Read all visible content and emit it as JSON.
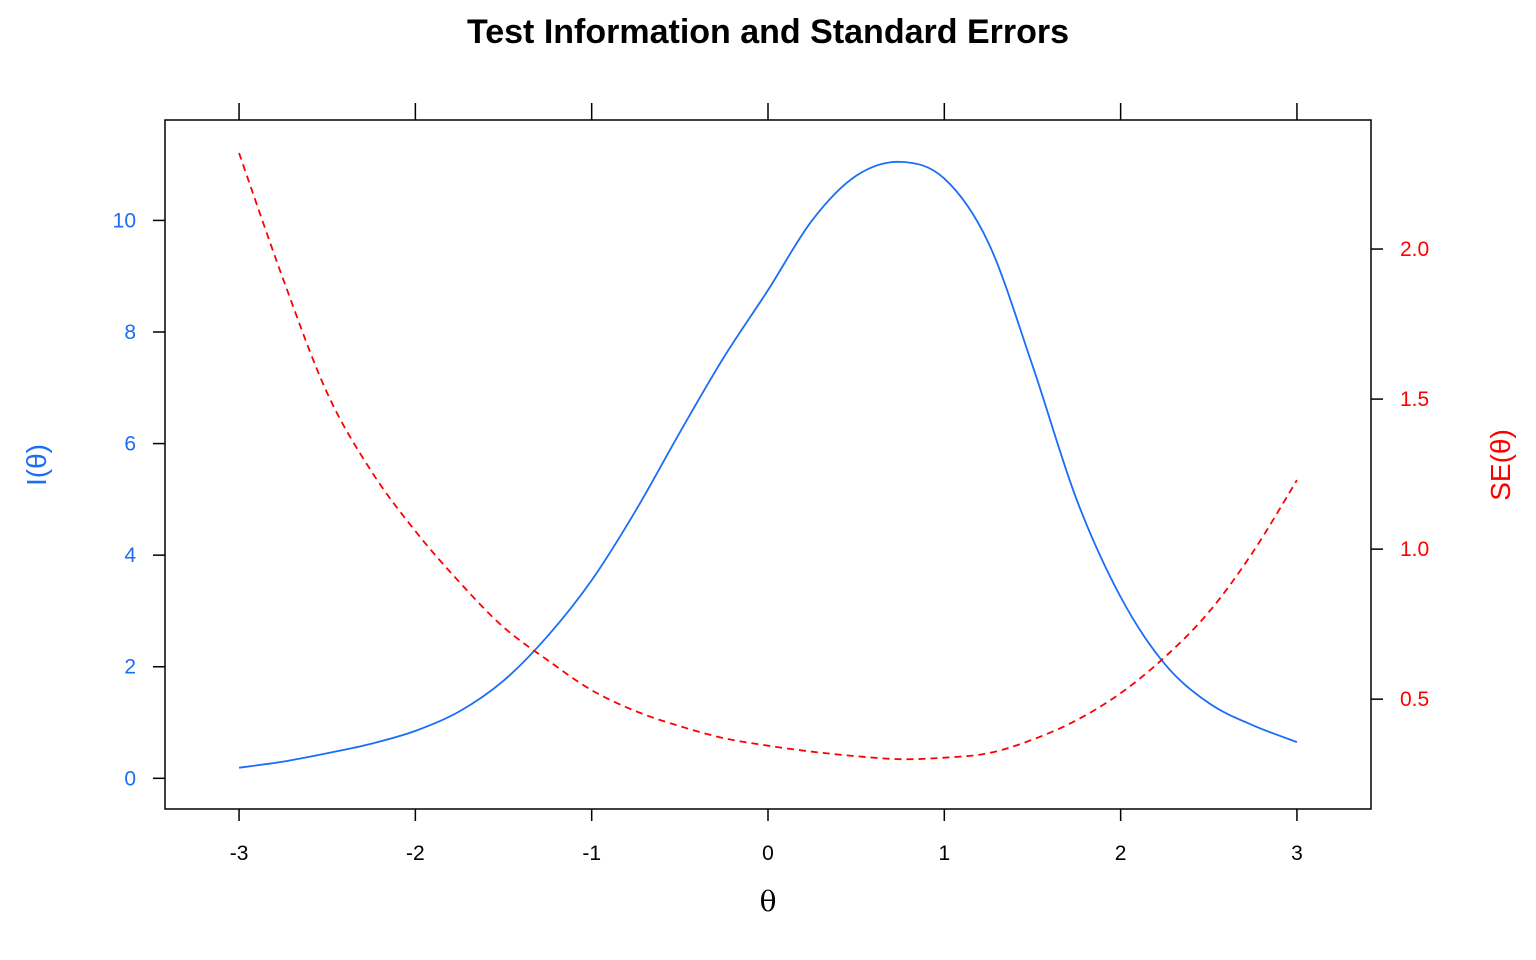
{
  "chart_data": {
    "type": "line",
    "title": "Test Information and Standard Errors",
    "xlabel": "θ",
    "ylabel_left": "I(θ)",
    "ylabel_right": "SE(θ)",
    "xlim": [
      -3.42,
      3.42
    ],
    "ylim_left": [
      -0.55,
      11.8
    ],
    "ylim_right": [
      0.134,
      2.43
    ],
    "x_ticks": [
      "-3",
      "-2",
      "-1",
      "0",
      "1",
      "2",
      "3"
    ],
    "y_left_ticks": [
      "0",
      "2",
      "4",
      "6",
      "8",
      "10"
    ],
    "y_right_ticks": [
      "0.5",
      "1.0",
      "1.5",
      "2.0"
    ],
    "grid": false,
    "colors": {
      "information": "#1a6ef5",
      "se": "#ff0000",
      "axes": "#000000"
    },
    "series": [
      {
        "axis": "left",
        "line_style": "solid",
        "x": [
          -3.0,
          -2.75,
          -2.5,
          -2.25,
          -2.0,
          -1.75,
          -1.5,
          -1.25,
          -1.0,
          -0.75,
          -0.5,
          -0.25,
          0.0,
          0.25,
          0.5,
          0.75,
          1.0,
          1.25,
          1.5,
          1.75,
          2.0,
          2.25,
          2.5,
          2.75,
          3.0
        ],
        "y": [
          0.19,
          0.3,
          0.45,
          0.62,
          0.85,
          1.2,
          1.75,
          2.55,
          3.55,
          4.8,
          6.2,
          7.55,
          8.75,
          10.0,
          10.8,
          11.05,
          10.75,
          9.6,
          7.4,
          5.0,
          3.25,
          2.05,
          1.35,
          0.95,
          0.65
        ]
      },
      {
        "axis": "right",
        "line_style": "dashed",
        "x": [
          -3.0,
          -2.75,
          -2.5,
          -2.25,
          -2.0,
          -1.75,
          -1.5,
          -1.25,
          -1.0,
          -0.75,
          -0.5,
          -0.25,
          0.0,
          0.25,
          0.5,
          0.75,
          1.0,
          1.25,
          1.5,
          1.75,
          2.0,
          2.25,
          2.5,
          2.75,
          3.0
        ],
        "y": [
          2.32,
          1.9,
          1.52,
          1.26,
          1.06,
          0.89,
          0.74,
          0.63,
          0.53,
          0.46,
          0.41,
          0.37,
          0.345,
          0.325,
          0.31,
          0.3,
          0.305,
          0.32,
          0.365,
          0.43,
          0.52,
          0.64,
          0.79,
          0.99,
          1.23
        ]
      }
    ]
  }
}
